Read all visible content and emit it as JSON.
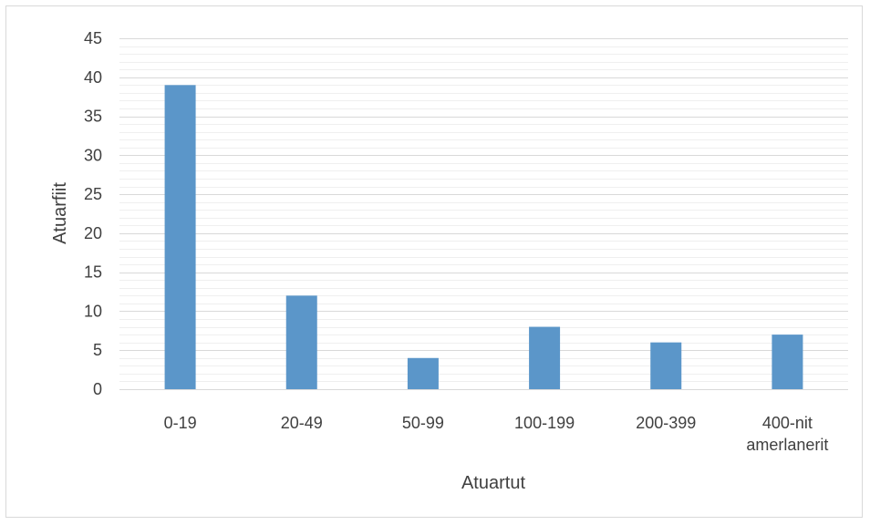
{
  "chart_data": {
    "type": "bar",
    "categories": [
      [
        "0-19"
      ],
      [
        "20-49"
      ],
      [
        "50-99"
      ],
      [
        "100-199"
      ],
      [
        "200-399"
      ],
      [
        "400-nit",
        "amerlanerit"
      ]
    ],
    "values": [
      39,
      12,
      4,
      8,
      6,
      7
    ],
    "xlabel": "Atuartut",
    "ylabel": "Atuarfiit",
    "ylim": [
      0,
      45
    ],
    "yticks": [
      0,
      5,
      10,
      15,
      20,
      25,
      30,
      35,
      40,
      45
    ],
    "grid": true,
    "bar_color": "#5b96c9"
  }
}
